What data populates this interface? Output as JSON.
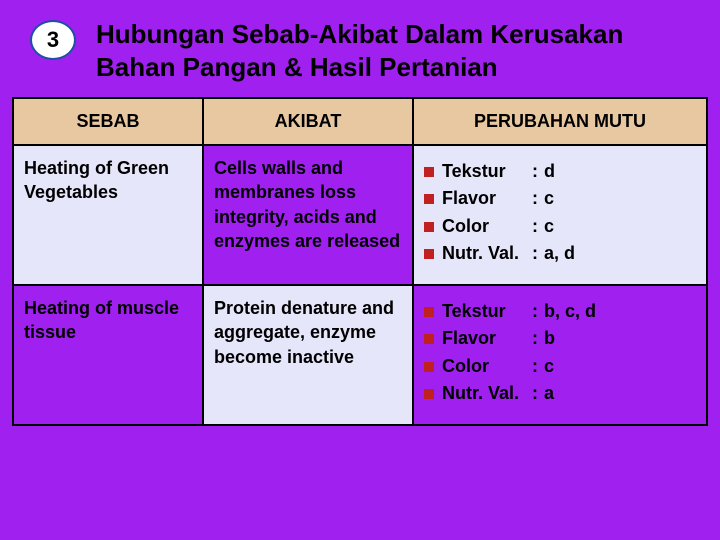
{
  "badge_number": "3",
  "title": "Hubungan Sebab-Akibat Dalam Kerusakan Bahan Pangan & Hasil Pertanian",
  "columns": {
    "c1": "SEBAB",
    "c2": "AKIBAT",
    "c3": "PERUBAHAN MUTU"
  },
  "rows": [
    {
      "sebab": "Heating of Green Vegetables",
      "akibat": "Cells walls and membranes loss integrity, acids and enzymes are released",
      "mutu": [
        {
          "label": "Tekstur",
          "value": "d"
        },
        {
          "label": "Flavor",
          "value": "c"
        },
        {
          "label": "Color",
          "value": "c"
        },
        {
          "label": "Nutr. Val.",
          "value": "a, d"
        }
      ]
    },
    {
      "sebab": "Heating of muscle tissue",
      "akibat": "Protein denature and aggregate, enzyme become inactive",
      "mutu": [
        {
          "label": "Tekstur",
          "value": "b, c, d"
        },
        {
          "label": "Flavor",
          "value": "b"
        },
        {
          "label": "Color",
          "value": "c"
        },
        {
          "label": "Nutr. Val.",
          "value": "a"
        }
      ]
    }
  ],
  "colors": {
    "page_bg": "#a020f0",
    "header_bg": "#e8c8a0",
    "cell_alt_bg": "#e6e6fa",
    "border": "#000000",
    "bullet": "#c02020",
    "badge_border": "#1f4ea8"
  }
}
